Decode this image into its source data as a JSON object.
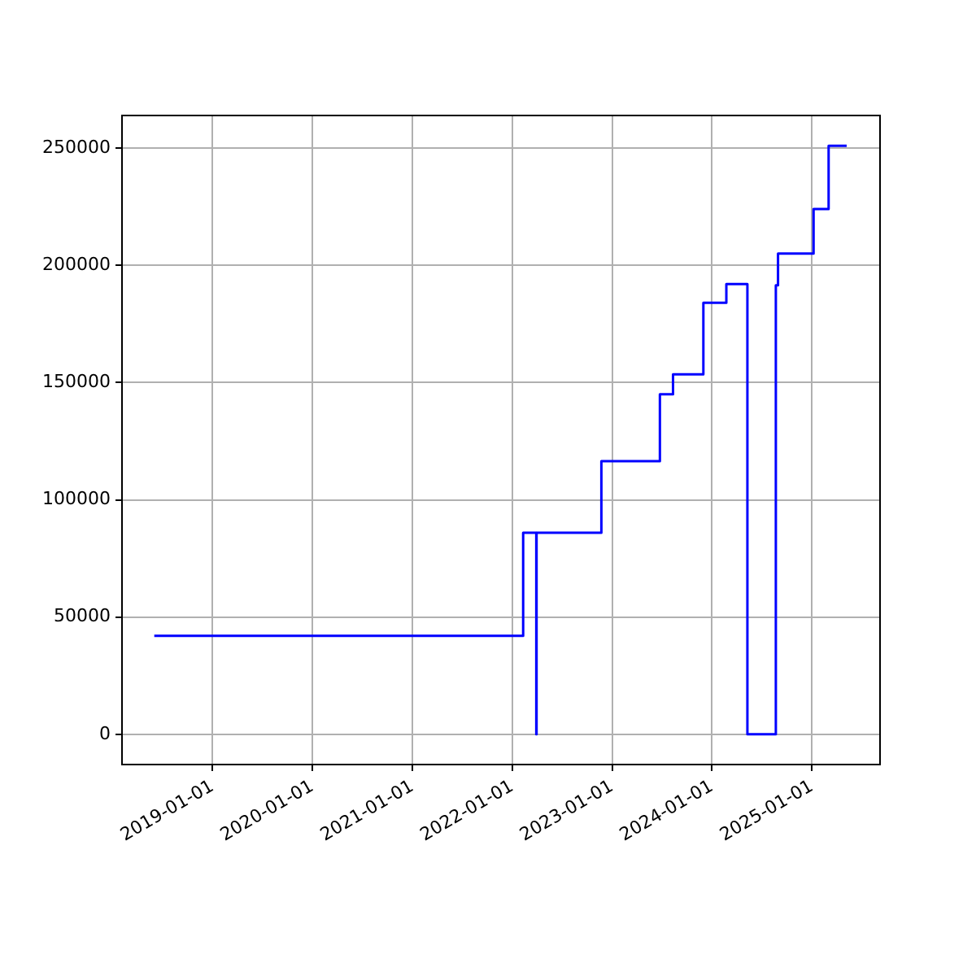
{
  "chart_data": {
    "type": "step",
    "x": [
      "2018-06-02",
      "2022-02-10",
      "2022-03-30",
      "2022-03-31",
      "2022-11-23",
      "2023-06-25",
      "2023-08-12",
      "2023-12-01",
      "2024-02-23",
      "2024-05-10",
      "2024-08-22",
      "2024-08-30",
      "2025-01-07",
      "2025-03-03",
      "2025-05-08"
    ],
    "series": [
      {
        "color": "#0000ff",
        "values": [
          42000,
          86000,
          0,
          86000,
          116500,
          145000,
          153500,
          184000,
          192000,
          0,
          191500,
          205000,
          224000,
          251000,
          251000
        ]
      }
    ],
    "xlim": [
      "2018-02-04",
      "2025-09-07"
    ],
    "xticks": [
      "2019-01-01",
      "2020-01-01",
      "2021-01-01",
      "2022-01-01",
      "2023-01-01",
      "2024-01-01",
      "2025-01-01"
    ],
    "ylim": [
      -12900,
      263900
    ],
    "yticks": [
      0,
      50000,
      100000,
      150000,
      200000,
      250000
    ],
    "grid": true,
    "legend": false,
    "marker": "none",
    "line_style": "solid"
  }
}
